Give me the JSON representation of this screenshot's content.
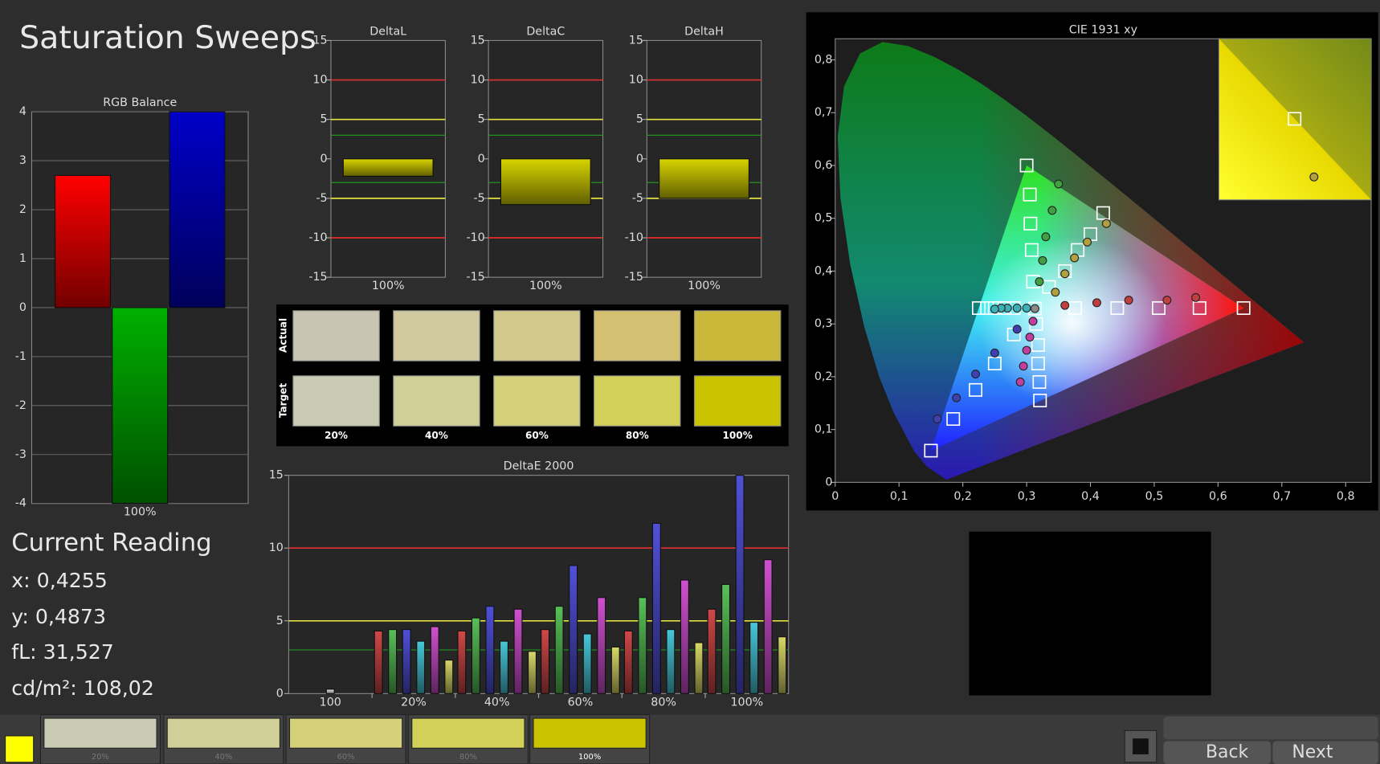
{
  "page_title": "Saturation Sweeps",
  "chart_data": [
    {
      "type": "bar",
      "title": "RGB Balance",
      "categories": [
        "100%"
      ],
      "ylim": [
        -4,
        4
      ],
      "yticks": [
        -4,
        -3,
        -2,
        -1,
        0,
        1,
        2,
        3,
        4
      ],
      "grid": true,
      "series": [
        {
          "color": "#ff0000",
          "values": [
            2.7
          ]
        },
        {
          "color": "#00b000",
          "values": [
            -4
          ]
        },
        {
          "color": "#0000c8",
          "values": [
            4
          ]
        }
      ]
    },
    {
      "type": "bar",
      "title": "DeltaL",
      "categories": [
        "100%"
      ],
      "ylim": [
        -15,
        15
      ],
      "yticks": [
        -15,
        -10,
        -5,
        0,
        5,
        10,
        15
      ],
      "grid": false,
      "reference_lines": [
        {
          "value": 10,
          "color": "#e03030"
        },
        {
          "value": 5,
          "color": "#e0e040"
        },
        {
          "value": 3,
          "color": "#20a020"
        },
        {
          "value": -3,
          "color": "#20a020"
        },
        {
          "value": -5,
          "color": "#e0e040"
        },
        {
          "value": -10,
          "color": "#e03030"
        }
      ],
      "series": [
        {
          "color": "#d8d400",
          "values": [
            -2.2
          ]
        }
      ]
    },
    {
      "type": "bar",
      "title": "DeltaC",
      "categories": [
        "100%"
      ],
      "ylim": [
        -15,
        15
      ],
      "yticks": [
        -15,
        -10,
        -5,
        0,
        5,
        10,
        15
      ],
      "grid": false,
      "reference_lines": [
        {
          "value": 10,
          "color": "#e03030"
        },
        {
          "value": 5,
          "color": "#e0e040"
        },
        {
          "value": 3,
          "color": "#20a020"
        },
        {
          "value": -3,
          "color": "#20a020"
        },
        {
          "value": -5,
          "color": "#e0e040"
        },
        {
          "value": -10,
          "color": "#e03030"
        }
      ],
      "series": [
        {
          "color": "#d8d400",
          "values": [
            -5.8
          ]
        }
      ]
    },
    {
      "type": "bar",
      "title": "DeltaH",
      "categories": [
        "100%"
      ],
      "ylim": [
        -15,
        15
      ],
      "yticks": [
        -15,
        -10,
        -5,
        0,
        5,
        10,
        15
      ],
      "grid": false,
      "reference_lines": [
        {
          "value": 10,
          "color": "#e03030"
        },
        {
          "value": 5,
          "color": "#e0e040"
        },
        {
          "value": 3,
          "color": "#20a020"
        },
        {
          "value": -3,
          "color": "#20a020"
        },
        {
          "value": -5,
          "color": "#e0e040"
        },
        {
          "value": -10,
          "color": "#e03030"
        }
      ],
      "series": [
        {
          "color": "#d8d400",
          "values": [
            -5
          ]
        }
      ]
    },
    {
      "type": "bar",
      "title": "DeltaE 2000",
      "categories": [
        "100",
        "20%",
        "40%",
        "60%",
        "80%",
        "100%"
      ],
      "ylim": [
        0,
        15
      ],
      "yticks": [
        0,
        5,
        10,
        15
      ],
      "grid": false,
      "reference_lines": [
        {
          "value": 10,
          "color": "#e03030"
        },
        {
          "value": 5,
          "color": "#e0e040"
        },
        {
          "value": 3,
          "color": "#20a020"
        }
      ],
      "series": [
        {
          "color": "#d04848",
          "values": [
            null,
            4.3,
            4.3,
            4.4,
            4.3,
            5.8
          ]
        },
        {
          "color": "#58c058",
          "values": [
            null,
            4.4,
            5.2,
            6.0,
            6.6,
            7.5
          ]
        },
        {
          "color": "#5050d8",
          "values": [
            null,
            4.4,
            6.0,
            8.8,
            11.7,
            15
          ]
        },
        {
          "color": "#48c8d8",
          "values": [
            null,
            3.6,
            3.6,
            4.1,
            4.4,
            4.9
          ]
        },
        {
          "color": "#d050d0",
          "values": [
            null,
            4.6,
            5.8,
            6.6,
            7.8,
            9.2
          ]
        },
        {
          "color": "#d8d868",
          "values": [
            null,
            2.3,
            2.9,
            3.2,
            3.5,
            3.9
          ]
        },
        {
          "color": "#eeeeee",
          "values": [
            0.3,
            null,
            null,
            null,
            null,
            null
          ]
        }
      ]
    },
    {
      "type": "scatter",
      "title": "CIE 1931 xy",
      "xlim": [
        0,
        0.84
      ],
      "ylim": [
        0,
        0.84
      ],
      "xticks": [
        0,
        {
          "value": 0.1,
          "label": "0,1"
        },
        {
          "value": 0.2,
          "label": "0,2"
        },
        {
          "value": 0.3,
          "label": "0,3"
        },
        {
          "value": 0.4,
          "label": "0,4"
        },
        {
          "value": 0.5,
          "label": "0,5"
        },
        {
          "value": 0.6,
          "label": "0,6"
        },
        {
          "value": 0.7,
          "label": "0,7"
        },
        {
          "value": 0.8,
          "label": "0,8"
        }
      ],
      "yticks": [
        0,
        {
          "value": 0.1,
          "label": "0,1"
        },
        {
          "value": 0.2,
          "label": "0,2"
        },
        {
          "value": 0.3,
          "label": "0,3"
        },
        {
          "value": 0.4,
          "label": "0,4"
        },
        {
          "value": 0.5,
          "label": "0,5"
        },
        {
          "value": 0.6,
          "label": "0,6"
        },
        {
          "value": 0.7,
          "label": "0,7"
        },
        {
          "value": 0.8,
          "label": "0,8"
        }
      ],
      "series": [
        {
          "marker": "square",
          "color": "#ffffff",
          "x": [
            0.376,
            0.442,
            0.507,
            0.571,
            0.64
          ],
          "y": [
            0.33,
            0.33,
            0.33,
            0.33,
            0.33
          ]
        },
        {
          "marker": "square",
          "color": "#ffffff",
          "x": [
            0.31,
            0.308,
            0.306,
            0.305,
            0.3
          ],
          "y": [
            0.38,
            0.44,
            0.49,
            0.545,
            0.6
          ]
        },
        {
          "marker": "square",
          "color": "#ffffff",
          "x": [
            0.28,
            0.25,
            0.22,
            0.185,
            0.15
          ],
          "y": [
            0.28,
            0.225,
            0.175,
            0.12,
            0.06
          ]
        },
        {
          "marker": "square",
          "color": "#ffffff",
          "x": [
            0.28,
            0.265,
            0.25,
            0.238,
            0.225
          ],
          "y": [
            0.33,
            0.33,
            0.33,
            0.33,
            0.33
          ]
        },
        {
          "marker": "square",
          "color": "#ffffff",
          "x": [
            0.315,
            0.318,
            0.318,
            0.32,
            0.321
          ],
          "y": [
            0.3,
            0.26,
            0.225,
            0.19,
            0.155
          ]
        },
        {
          "marker": "square",
          "color": "#ffffff",
          "x": [
            0.335,
            0.36,
            0.38,
            0.4,
            0.42
          ],
          "y": [
            0.37,
            0.4,
            0.44,
            0.47,
            0.51
          ]
        },
        {
          "marker": "square",
          "color": "#ffffff",
          "x": [
            0.313
          ],
          "y": [
            0.329
          ]
        },
        {
          "marker": "circle",
          "color": "#c04040",
          "x": [
            0.36,
            0.41,
            0.46,
            0.52,
            0.565
          ],
          "y": [
            0.335,
            0.34,
            0.345,
            0.345,
            0.35
          ]
        },
        {
          "marker": "circle",
          "color": "#40a040",
          "x": [
            0.32,
            0.325,
            0.33,
            0.34,
            0.35
          ],
          "y": [
            0.38,
            0.42,
            0.465,
            0.515,
            0.565
          ]
        },
        {
          "marker": "circle",
          "color": "#4040b0",
          "x": [
            0.285,
            0.25,
            0.22,
            0.19,
            0.16
          ],
          "y": [
            0.29,
            0.245,
            0.205,
            0.16,
            0.12
          ]
        },
        {
          "marker": "circle",
          "color": "#40b0b8",
          "x": [
            0.3,
            0.285,
            0.27,
            0.26,
            0.25
          ],
          "y": [
            0.33,
            0.33,
            0.33,
            0.33,
            0.328
          ]
        },
        {
          "marker": "circle",
          "color": "#c040a0",
          "x": [
            0.31,
            0.305,
            0.3,
            0.295,
            0.29
          ],
          "y": [
            0.305,
            0.275,
            0.25,
            0.22,
            0.19
          ]
        },
        {
          "marker": "circle",
          "color": "#b0a040",
          "x": [
            0.345,
            0.36,
            0.375,
            0.395,
            0.425
          ],
          "y": [
            0.36,
            0.395,
            0.425,
            0.455,
            0.49
          ]
        },
        {
          "marker": "circle",
          "color": "#888888",
          "x": [
            0.313
          ],
          "y": [
            0.329
          ]
        }
      ]
    }
  ],
  "swatches": {
    "rows": [
      "Actual",
      "Target"
    ],
    "columns": [
      "20%",
      "40%",
      "60%",
      "80%",
      "100%"
    ],
    "actual": [
      "#c9c5b2",
      "#d0c9a0",
      "#d3c98c",
      "#d4c070",
      "#cab83a"
    ],
    "target": [
      "#c9cbb2",
      "#d0cf98",
      "#d5d07a",
      "#d3d05a",
      "#cac300"
    ]
  },
  "readout": {
    "heading": "Current Reading",
    "lines": [
      "x: 0,4255",
      "y: 0,4873",
      "fL: 31,527",
      "cd/m²: 108,02"
    ]
  },
  "toolbar": {
    "labels": [
      "20%",
      "40%",
      "60%",
      "80%",
      "100%"
    ],
    "back": "Back",
    "next": "Next"
  }
}
